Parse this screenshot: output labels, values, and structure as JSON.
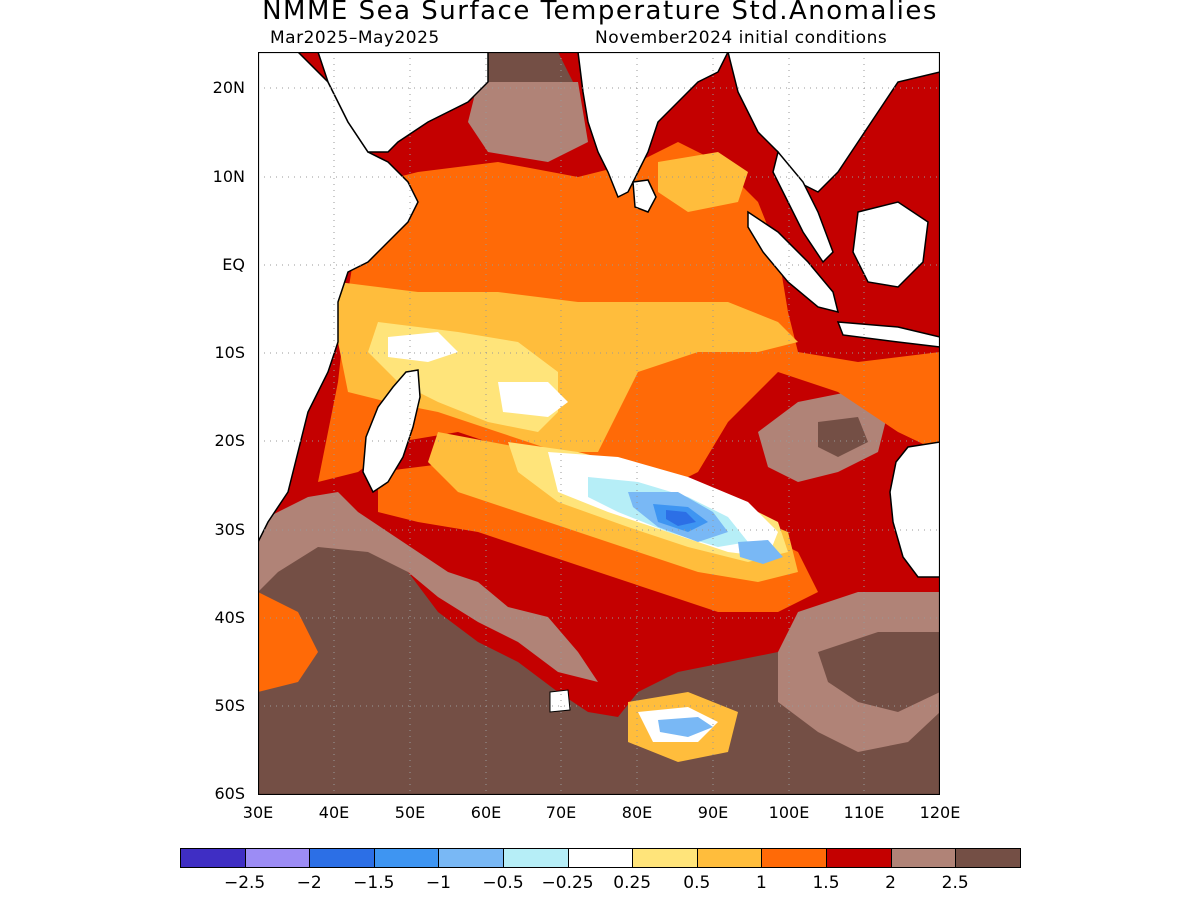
{
  "title": "NMME Sea Surface Temperature Std.Anomalies",
  "subtitle_left": "Mar2025–May2025",
  "subtitle_right": "November2024 initial conditions",
  "lat_labels": [
    "20N",
    "10N",
    "EQ",
    "10S",
    "20S",
    "30S",
    "40S",
    "50S",
    "60S"
  ],
  "lon_labels": [
    "30E",
    "40E",
    "50E",
    "60E",
    "70E",
    "80E",
    "90E",
    "100E",
    "110E",
    "120E"
  ],
  "legend": {
    "colors": [
      "#3f2ec4",
      "#9c8cf5",
      "#2c6fe6",
      "#3e95f2",
      "#79b8f5",
      "#b6eef7",
      "#ffffff",
      "#ffe47a",
      "#ffbd3c",
      "#ff6a07",
      "#c40000",
      "#b08377",
      "#744f45"
    ],
    "labels": [
      "−2.5",
      "−2",
      "−1.5",
      "−1",
      "−0.5",
      "−0.25",
      "0.25",
      "0.5",
      "1",
      "1.5",
      "2",
      "2.5"
    ]
  },
  "map": {
    "extent_lon": [
      30,
      120
    ],
    "extent_lat": [
      -60,
      24
    ],
    "ocean_base_color": "#c40000",
    "land_color": "#ffffff",
    "coastline_color": "#000000"
  }
}
